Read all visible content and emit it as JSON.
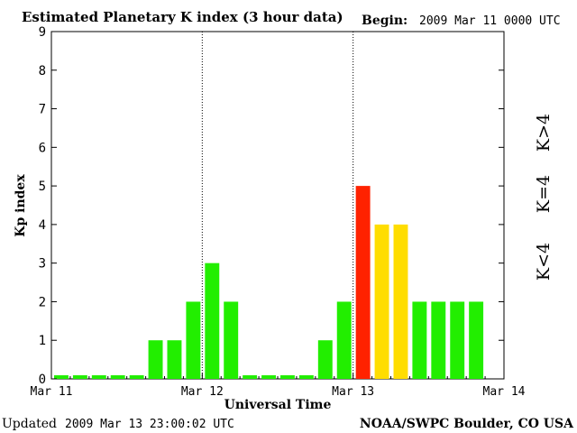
{
  "chart_data": {
    "type": "bar",
    "title": "Estimated Planetary K index (3 hour data)",
    "begin_label": "Begin:",
    "begin_value": "2009 Mar 11 0000 UTC",
    "ylabel": "Kp index",
    "xlabel": "Universal Time",
    "ylim": [
      0,
      9
    ],
    "yticks": [
      "0",
      "1",
      "2",
      "3",
      "4",
      "5",
      "6",
      "7",
      "8",
      "9"
    ],
    "xticks": [
      "Mar 11",
      "Mar 12",
      "Mar 13",
      "Mar 14"
    ],
    "values": [
      0,
      0,
      0,
      0,
      0,
      1,
      1,
      2,
      3,
      2,
      0,
      0,
      0,
      0,
      1,
      2,
      5,
      4,
      4,
      2,
      2,
      2,
      2
    ],
    "colors": {
      "low": "#22ee00",
      "mid": "#ffdd00",
      "high": "#ff2200"
    },
    "legend": {
      "low": "K<4",
      "mid": "K=4",
      "high": "K>4"
    },
    "grid": false
  },
  "footer": {
    "updated_label": "Updated",
    "updated_value": "2009 Mar 13 23:00:02 UTC",
    "credit": "NOAA/SWPC Boulder, CO USA"
  }
}
